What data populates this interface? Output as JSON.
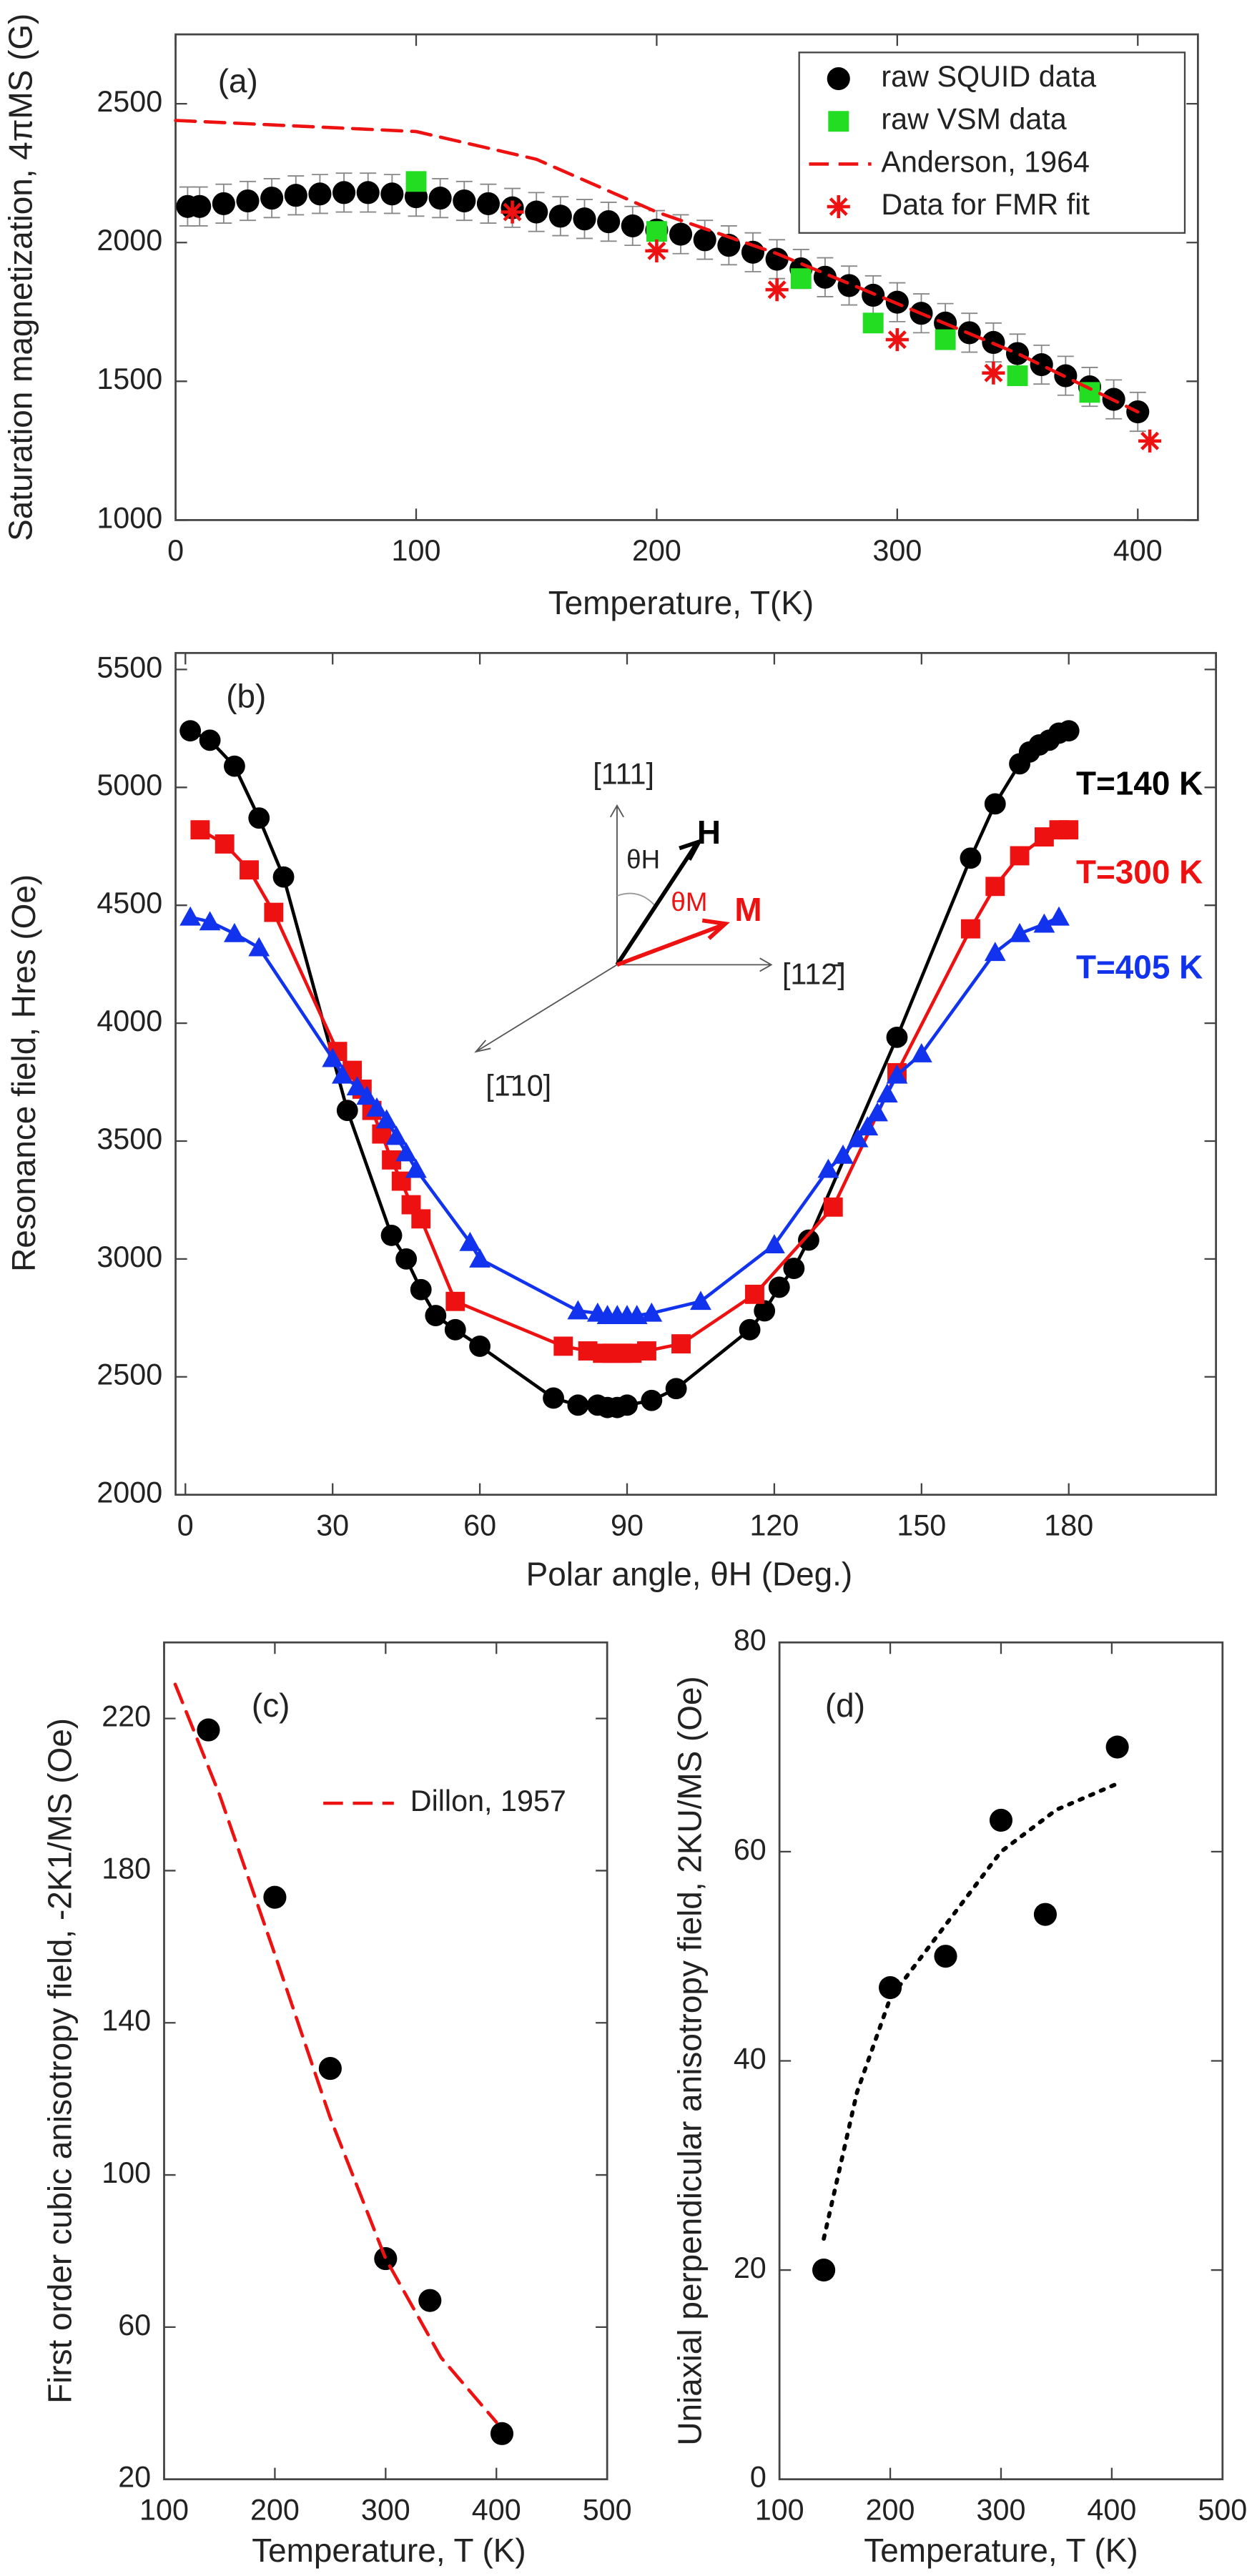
{
  "chart_data": [
    {
      "type": "scatter",
      "annotation": "(a)",
      "xlabel": "Temperature, T(K)",
      "ylabel": "Saturation magnetization, 4πMS (G)",
      "xlim": [
        0,
        425
      ],
      "ylim": [
        1000,
        2750
      ],
      "xticks": [
        0,
        100,
        200,
        300,
        400
      ],
      "yticks": [
        1000,
        1500,
        2000,
        2500
      ],
      "legend": "upper right",
      "series": [
        {
          "name": "raw SQUID data",
          "color": "#000000",
          "marker": "circle",
          "x": [
            5,
            10,
            20,
            30,
            40,
            50,
            60,
            70,
            80,
            90,
            100,
            110,
            120,
            130,
            140,
            150,
            160,
            170,
            180,
            190,
            200,
            210,
            220,
            230,
            240,
            250,
            260,
            270,
            280,
            290,
            300,
            310,
            320,
            330,
            340,
            350,
            360,
            370,
            380,
            390,
            400
          ],
          "values": [
            2130,
            2130,
            2140,
            2150,
            2160,
            2170,
            2175,
            2180,
            2180,
            2175,
            2165,
            2160,
            2150,
            2140,
            2125,
            2110,
            2095,
            2085,
            2075,
            2060,
            2045,
            2030,
            2010,
            1990,
            1965,
            1940,
            1905,
            1875,
            1845,
            1810,
            1785,
            1745,
            1710,
            1675,
            1640,
            1600,
            1560,
            1520,
            1480,
            1435,
            1390
          ],
          "errors": [
            70,
            70,
            70,
            70,
            70,
            70,
            70,
            70,
            70,
            70,
            70,
            70,
            70,
            70,
            70,
            70,
            70,
            70,
            70,
            70,
            70,
            70,
            70,
            70,
            70,
            70,
            70,
            70,
            70,
            70,
            70,
            70,
            70,
            70,
            70,
            70,
            70,
            70,
            70,
            70,
            70
          ]
        },
        {
          "name": "raw VSM data",
          "color": "#22dd22",
          "marker": "square",
          "x": [
            100,
            200,
            260,
            290,
            320,
            350,
            380
          ],
          "values": [
            2220,
            2040,
            1870,
            1710,
            1650,
            1520,
            1460
          ]
        },
        {
          "name": "Anderson, 1964",
          "color": "#ee1111",
          "line": "dashed",
          "x": [
            0,
            100,
            150,
            200,
            250,
            300,
            350,
            400
          ],
          "values": [
            2440,
            2400,
            2300,
            2110,
            1960,
            1780,
            1600,
            1390
          ]
        },
        {
          "name": "Data for FMR fit",
          "color": "#ee1111",
          "marker": "star",
          "x": [
            140,
            200,
            250,
            300,
            340,
            405
          ],
          "values": [
            2110,
            1970,
            1830,
            1650,
            1530,
            1285
          ]
        }
      ]
    },
    {
      "type": "scatter",
      "annotation": "(b)",
      "xlabel": "Polar angle, θH (Deg.)",
      "ylabel": "Resonance field, Hres (Oe)",
      "xlim": [
        -2,
        210
      ],
      "ylim": [
        2000,
        5570
      ],
      "xticks": [
        0,
        30,
        60,
        90,
        120,
        150,
        180
      ],
      "yticks": [
        2000,
        2500,
        3000,
        3500,
        4000,
        4500,
        5000,
        5500
      ],
      "legend": "right",
      "inset": [
        "[111]",
        "H",
        "θH",
        "θM",
        "M",
        "[112̄]",
        "[1̄10]"
      ],
      "series": [
        {
          "name": "T=140 K",
          "color": "#000000",
          "marker": "circle",
          "line": "solid",
          "x": [
            1,
            5,
            10,
            15,
            20,
            33,
            42,
            45,
            48,
            51,
            55,
            60,
            75,
            80,
            84,
            86,
            88,
            90,
            95,
            100,
            115,
            118,
            121,
            124,
            127,
            145,
            160,
            165,
            170,
            172,
            174,
            176,
            178,
            180
          ],
          "values": [
            5240,
            5200,
            5090,
            4870,
            4620,
            3630,
            3100,
            3000,
            2870,
            2760,
            2700,
            2630,
            2410,
            2380,
            2380,
            2370,
            2370,
            2380,
            2400,
            2450,
            2700,
            2780,
            2880,
            2960,
            3080,
            3940,
            4700,
            4930,
            5100,
            5150,
            5180,
            5200,
            5230,
            5240
          ]
        },
        {
          "name": "T=300 K",
          "color": "#ee1111",
          "marker": "square",
          "line": "solid",
          "x": [
            3,
            8,
            13,
            18,
            31,
            34,
            36,
            38,
            40,
            42,
            44,
            46,
            48,
            55,
            77,
            82,
            85,
            87,
            89,
            91,
            94,
            101,
            116,
            132,
            145,
            160,
            165,
            170,
            175,
            178,
            180
          ],
          "values": [
            4820,
            4760,
            4650,
            4470,
            3880,
            3800,
            3720,
            3630,
            3530,
            3420,
            3330,
            3230,
            3170,
            2820,
            2630,
            2610,
            2600,
            2600,
            2600,
            2600,
            2610,
            2640,
            2850,
            3220,
            3790,
            4400,
            4580,
            4710,
            4790,
            4820,
            4820
          ]
        },
        {
          "name": "T=405 K",
          "color": "#1133ee",
          "marker": "triangle",
          "line": "solid",
          "x": [
            1,
            5,
            10,
            15,
            30,
            32,
            35,
            37,
            39,
            41,
            43,
            45,
            47,
            58,
            60,
            80,
            84,
            86,
            88,
            90,
            92,
            95,
            105,
            120,
            131,
            134,
            137,
            139,
            141,
            143,
            145,
            150,
            165,
            170,
            175,
            178
          ],
          "values": [
            4450,
            4430,
            4380,
            4320,
            3850,
            3780,
            3730,
            3690,
            3640,
            3590,
            3520,
            3450,
            3380,
            3070,
            3000,
            2780,
            2770,
            2760,
            2760,
            2760,
            2760,
            2770,
            2820,
            3060,
            3380,
            3440,
            3510,
            3560,
            3620,
            3700,
            3780,
            3870,
            4300,
            4380,
            4420,
            4450
          ]
        }
      ]
    },
    {
      "type": "scatter",
      "annotation": "(c)",
      "xlabel": "Temperature, T (K)",
      "ylabel": "First order cubic anisotropy field, -2K1/MS (Oe)",
      "xlim": [
        100,
        500
      ],
      "ylim": [
        20,
        240
      ],
      "xticks": [
        100,
        200,
        300,
        400,
        500
      ],
      "yticks": [
        20,
        60,
        100,
        140,
        180,
        220
      ],
      "legend": "upper right",
      "series": [
        {
          "color": "#000000",
          "marker": "circle",
          "x": [
            140,
            200,
            250,
            300,
            340,
            405
          ],
          "values": [
            217,
            173,
            128,
            78,
            67,
            32
          ]
        },
        {
          "name": "Dillon, 1957",
          "color": "#ee1111",
          "line": "dashed",
          "x": [
            110,
            150,
            200,
            250,
            300,
            350,
            400
          ],
          "values": [
            229,
            200,
            158,
            115,
            78,
            52,
            35
          ]
        }
      ]
    },
    {
      "type": "scatter",
      "annotation": "(d)",
      "xlabel": "Temperature, T (K)",
      "ylabel": "Uniaxial perpendicular anisotropy field, 2KU/MS (Oe)",
      "xlim": [
        100,
        500
      ],
      "ylim": [
        0,
        80
      ],
      "xticks": [
        100,
        200,
        300,
        400,
        500
      ],
      "yticks": [
        0,
        20,
        40,
        60,
        80
      ],
      "series": [
        {
          "color": "#000000",
          "marker": "circle",
          "x": [
            140,
            200,
            250,
            300,
            340,
            405
          ],
          "values": [
            20,
            47,
            50,
            63,
            54,
            70
          ]
        },
        {
          "color": "#000000",
          "line": "dotted",
          "x": [
            140,
            170,
            200,
            250,
            300,
            350,
            405
          ],
          "values": [
            23,
            37,
            46,
            53,
            60,
            64,
            66.5
          ]
        }
      ]
    }
  ]
}
